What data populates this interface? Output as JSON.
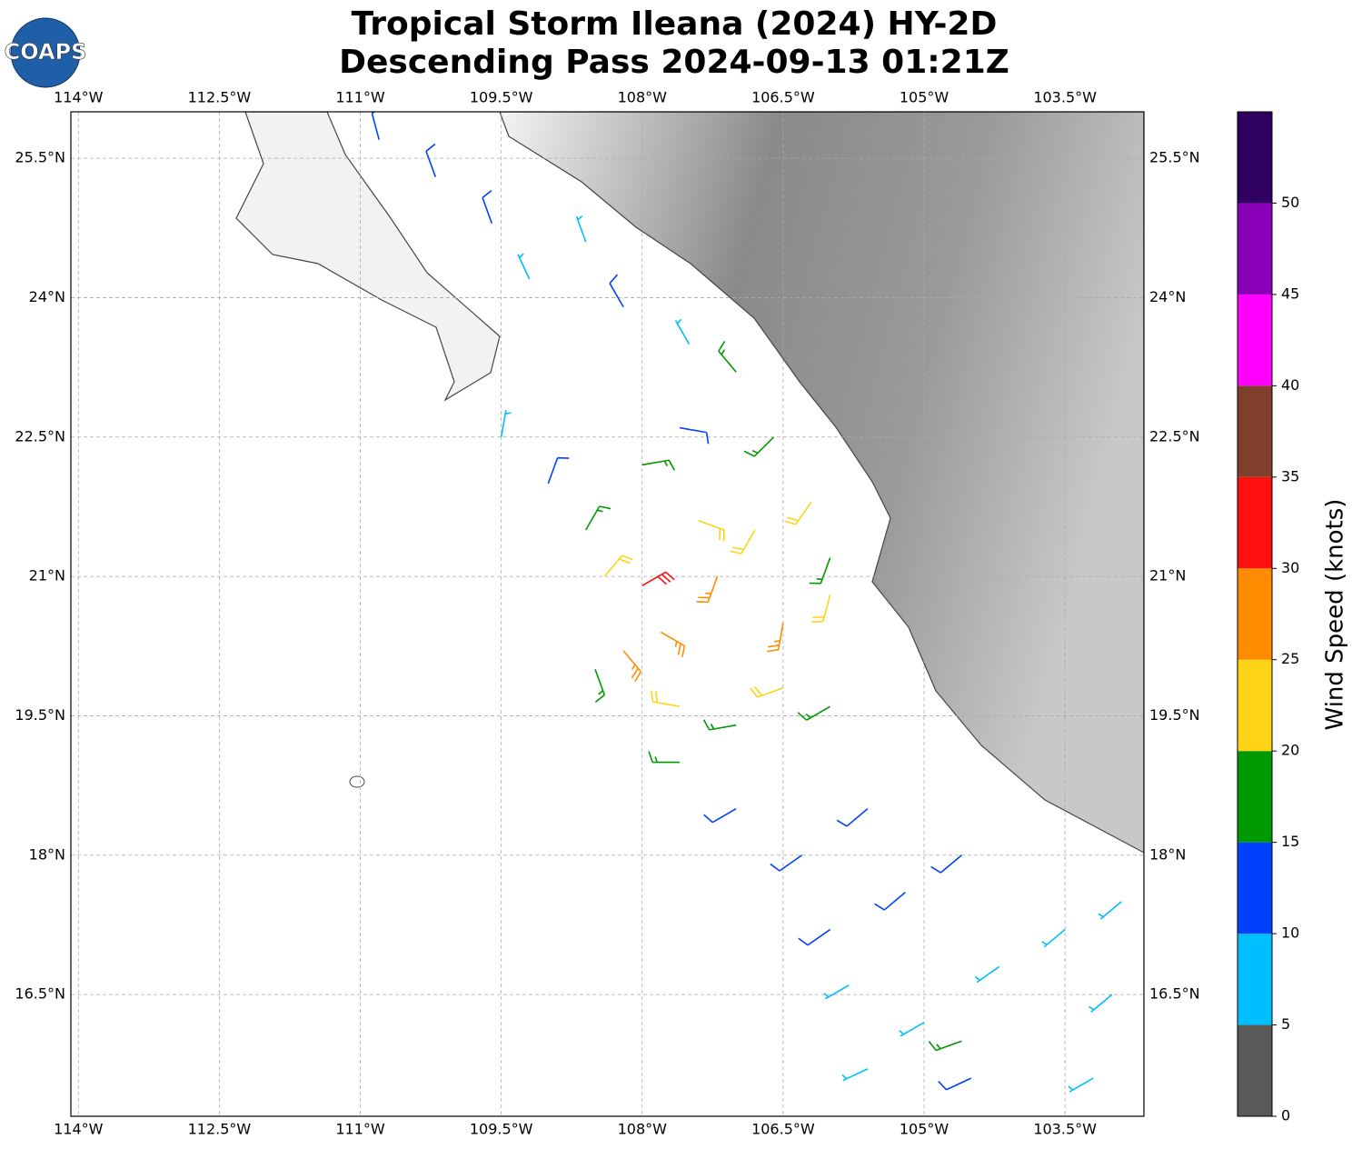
{
  "chart_data": {
    "type": "barbs",
    "title": "Tropical Storm Ileana (2024) HY-2D",
    "subtitle": "Descending Pass 2024-09-13 01:21Z",
    "logo": "COAPS",
    "xlim": [
      -114.08,
      -102.66
    ],
    "ylim": [
      15.19,
      26.0
    ],
    "xticks": [
      {
        "value": -114,
        "label": "114°W"
      },
      {
        "value": -112.5,
        "label": "112.5°W"
      },
      {
        "value": -111,
        "label": "111°W"
      },
      {
        "value": -109.5,
        "label": "109.5°W"
      },
      {
        "value": -108,
        "label": "108°W"
      },
      {
        "value": -106.5,
        "label": "106.5°W"
      },
      {
        "value": -105,
        "label": "105°W"
      },
      {
        "value": -103.5,
        "label": "103.5°W"
      }
    ],
    "yticks": [
      {
        "value": 16.5,
        "label": "16.5°N"
      },
      {
        "value": 18,
        "label": "18°N"
      },
      {
        "value": 19.5,
        "label": "19.5°N"
      },
      {
        "value": 21,
        "label": "21°N"
      },
      {
        "value": 22.5,
        "label": "22.5°N"
      },
      {
        "value": 24,
        "label": "24°N"
      },
      {
        "value": 25.5,
        "label": "25.5°N"
      }
    ],
    "grid": true,
    "colorbar": {
      "label": "Wind Speed (knots)",
      "lim": [
        0,
        55
      ],
      "bounds": [
        0,
        5,
        10,
        15,
        20,
        25,
        30,
        35,
        40,
        45,
        50,
        55
      ],
      "colors": [
        "#595959",
        "#00bfff",
        "#0040ff",
        "#009900",
        "#ffd416",
        "#ff8c00",
        "#ff1010",
        "#803f2a",
        "#ff00ff",
        "#8a00b8",
        "#300060"
      ],
      "ticks": [
        0,
        5,
        10,
        15,
        20,
        25,
        30,
        35,
        40,
        45,
        50
      ]
    },
    "barbs": {
      "lon": [
        -110.8,
        -110.2,
        -109.6,
        -109.2,
        -108.6,
        -108.2,
        -107.5,
        -107.0,
        -109.5,
        -109.0,
        -108.6,
        -108.4,
        -108.0,
        -107.8,
        -108.2,
        -108.5,
        -107.2,
        -106.8,
        -106.5,
        -106.2,
        -106.0,
        -106.6,
        -106.0,
        -107.6,
        -108.0,
        -107.4,
        -107.6,
        -107.0,
        -107.6,
        -106.5,
        -106.0,
        -107.0,
        -106.3,
        -105.6,
        -105.2,
        -106.0,
        -104.6,
        -105.8,
        -105.0,
        -104.2,
        -103.5,
        -103.0,
        -104.5,
        -103.2,
        -105.6,
        -104.6,
        -102.9
      ],
      "lat": [
        25.7,
        25.3,
        24.8,
        24.2,
        24.6,
        23.9,
        23.5,
        23.2,
        22.5,
        22.0,
        21.5,
        21.0,
        20.9,
        20.4,
        20.2,
        20.0,
        21.0,
        21.5,
        20.5,
        21.8,
        20.8,
        22.5,
        21.2,
        22.6,
        22.2,
        21.6,
        19.6,
        19.4,
        19.0,
        19.8,
        19.6,
        18.5,
        18.0,
        18.5,
        17.6,
        17.2,
        18.0,
        16.6,
        16.2,
        16.8,
        17.2,
        16.5,
        15.6,
        15.6,
        15.7,
        16.0,
        17.5
      ],
      "speed": [
        12,
        12,
        11,
        8,
        8,
        13,
        8,
        17,
        8,
        12,
        17,
        22,
        32,
        27,
        27,
        18,
        27,
        22,
        27,
        22,
        22,
        17,
        17,
        12,
        17,
        22,
        22,
        17,
        17,
        22,
        17,
        12,
        12,
        12,
        12,
        12,
        11,
        8,
        8,
        8,
        8,
        8,
        12,
        8,
        8,
        17,
        8
      ],
      "dir": [
        345,
        340,
        340,
        335,
        340,
        330,
        330,
        320,
        10,
        20,
        30,
        40,
        60,
        120,
        140,
        160,
        200,
        210,
        190,
        215,
        195,
        225,
        200,
        100,
        80,
        110,
        280,
        260,
        270,
        250,
        240,
        240,
        235,
        230,
        230,
        235,
        230,
        240,
        240,
        235,
        230,
        230,
        245,
        240,
        245,
        250,
        230
      ]
    }
  }
}
